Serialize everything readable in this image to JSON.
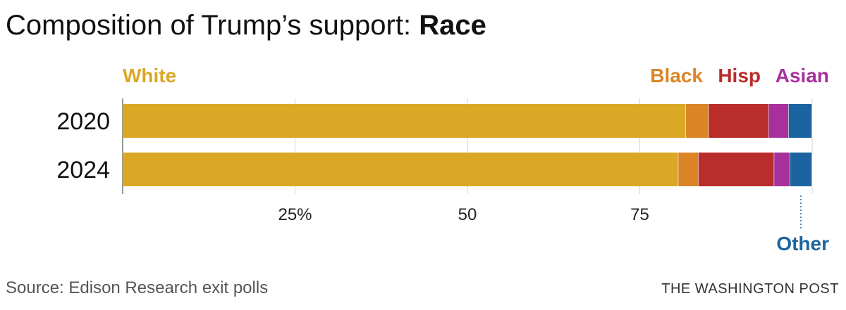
{
  "header": {
    "title_prefix": "Composition of Trump’s support: ",
    "title_bold": "Race"
  },
  "chart_data": {
    "type": "bar",
    "orientation": "horizontal",
    "stacked": true,
    "categories": [
      "2020",
      "2024"
    ],
    "series": [
      {
        "name": "White",
        "color": "#daa825",
        "values": [
          81.7,
          80.6
        ]
      },
      {
        "name": "Black",
        "color": "#dc8527",
        "values": [
          3.3,
          2.9
        ]
      },
      {
        "name": "Hisp",
        "color": "#b92d2a",
        "values": [
          8.7,
          11.0
        ]
      },
      {
        "name": "Asian",
        "color": "#a8309a",
        "values": [
          2.9,
          2.3
        ]
      },
      {
        "name": "Other",
        "color": "#1c64a0",
        "values": [
          3.4,
          3.2
        ]
      }
    ],
    "xticks": [
      {
        "value": 25,
        "label": "25%"
      },
      {
        "value": 50,
        "label": "50"
      },
      {
        "value": 75,
        "label": "75"
      }
    ],
    "xlim": [
      0,
      100
    ],
    "grid": true,
    "legend": "labels above bars, Other label below"
  },
  "footer": {
    "source": "Source: Edison Research exit polls",
    "credit": "THE WASHINGTON POST"
  }
}
